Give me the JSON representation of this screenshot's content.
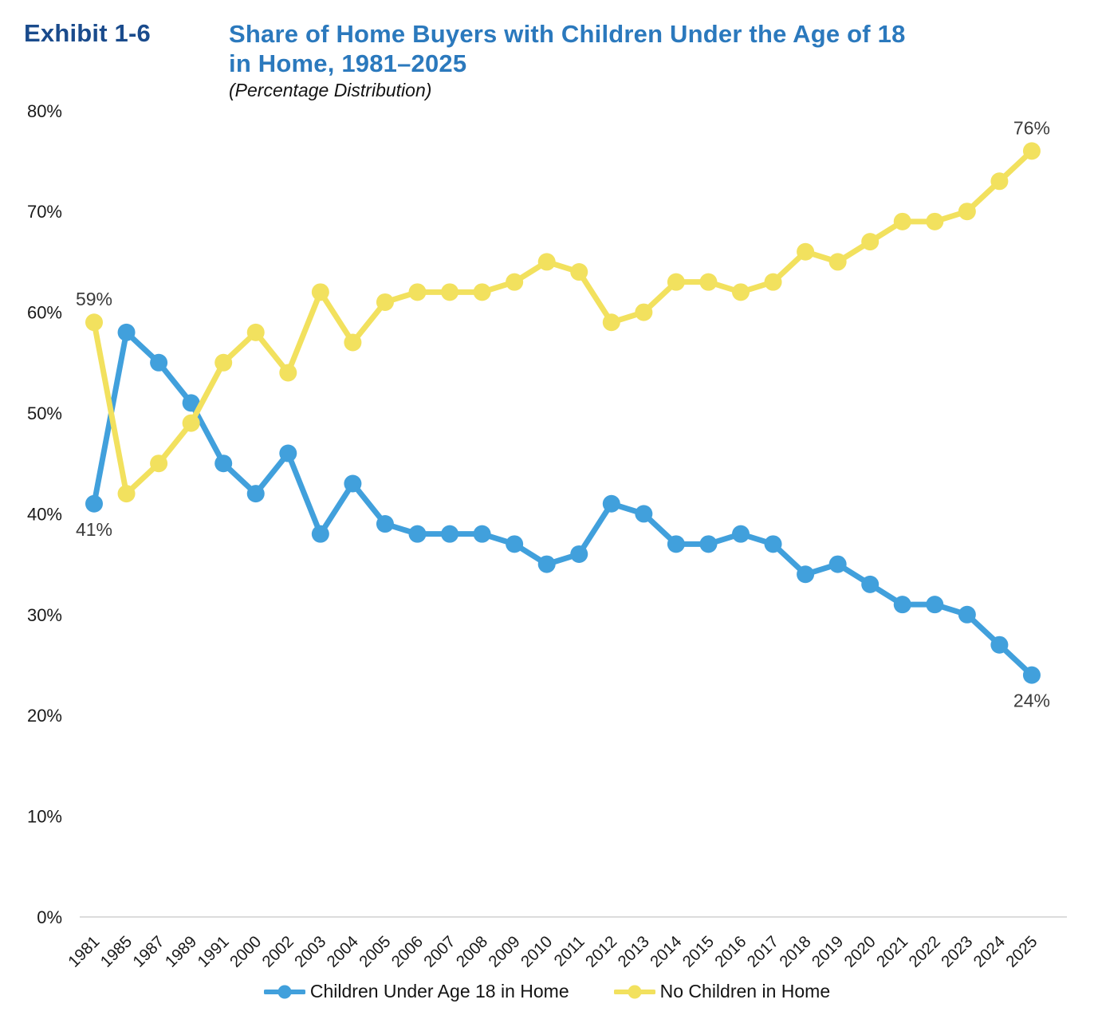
{
  "exhibit": {
    "label": "Exhibit 1-6"
  },
  "title": {
    "lines": [
      "Share of Home Buyers with Children Under the Age of 18",
      "in Home, 1981–2025"
    ],
    "subtitle": "(Percentage Distribution)"
  },
  "chart_data": {
    "type": "line",
    "title": "Share of Home Buyers with Children Under the Age of 18 in Home, 1981–2025",
    "subtitle": "(Percentage Distribution)",
    "xlabel": "",
    "ylabel": "",
    "ylim": [
      0,
      80
    ],
    "grid": false,
    "legend_position": "bottom",
    "y_ticks": [
      "0%",
      "10%",
      "20%",
      "30%",
      "40%",
      "50%",
      "60%",
      "70%",
      "80%"
    ],
    "categories": [
      "1981",
      "1985",
      "1987",
      "1989",
      "1991",
      "2000",
      "2002",
      "2003",
      "2004",
      "2005",
      "2006",
      "2007",
      "2008",
      "2009",
      "2010",
      "2011",
      "2012",
      "2013",
      "2014",
      "2015",
      "2016",
      "2017",
      "2018",
      "2019",
      "2020",
      "2021",
      "2022",
      "2023",
      "2024",
      "2025"
    ],
    "series": [
      {
        "name": "Children Under Age 18 in Home",
        "color": "#41a0dc",
        "values": [
          41,
          58,
          55,
          51,
          45,
          42,
          46,
          38,
          43,
          39,
          38,
          38,
          38,
          37,
          35,
          36,
          41,
          40,
          37,
          37,
          38,
          37,
          34,
          35,
          33,
          31,
          31,
          30,
          27,
          24
        ]
      },
      {
        "name": "No Children in Home",
        "color": "#f2e15e",
        "values": [
          59,
          42,
          45,
          49,
          55,
          58,
          54,
          62,
          57,
          61,
          62,
          62,
          62,
          63,
          65,
          64,
          59,
          60,
          63,
          63,
          62,
          63,
          66,
          65,
          67,
          69,
          69,
          70,
          73,
          76
        ]
      }
    ],
    "annotations": [
      {
        "text": "59%",
        "series": 1,
        "index": 0,
        "value": 59,
        "placement": "above"
      },
      {
        "text": "41%",
        "series": 0,
        "index": 0,
        "value": 41,
        "placement": "below"
      },
      {
        "text": "76%",
        "series": 1,
        "index": 29,
        "value": 76,
        "placement": "above"
      },
      {
        "text": "24%",
        "series": 0,
        "index": 29,
        "value": 24,
        "placement": "below"
      }
    ]
  },
  "colors": {
    "exhibit_label": "#1a4b8c",
    "title": "#2b79bd",
    "series_children": "#41a0dc",
    "series_no_children": "#f2e15e",
    "axis_text": "#1a1a1a",
    "baseline": "#dcdcdc"
  }
}
